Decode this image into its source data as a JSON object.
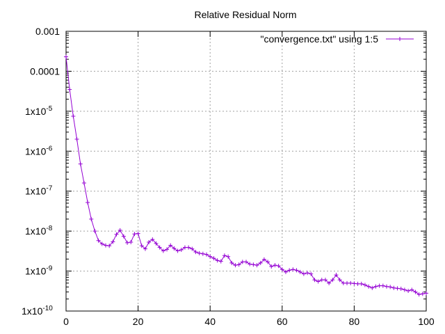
{
  "chart_data": {
    "type": "line",
    "title": "Relative Residual Norm",
    "xlabel": "",
    "ylabel": "",
    "xlim": [
      0,
      100
    ],
    "ylim": [
      1e-10,
      0.001
    ],
    "yscale": "log",
    "grid": true,
    "legend_position": "top-right",
    "x_ticks": [
      {
        "value": 0,
        "label": "0"
      },
      {
        "value": 20,
        "label": "20"
      },
      {
        "value": 40,
        "label": "40"
      },
      {
        "value": 60,
        "label": "60"
      },
      {
        "value": 80,
        "label": "80"
      },
      {
        "value": 100,
        "label": "100"
      }
    ],
    "y_ticks": [
      {
        "exp": -3,
        "mant": "0.001",
        "sup": ""
      },
      {
        "exp": -4,
        "mant": "0.0001",
        "sup": ""
      },
      {
        "exp": -5,
        "mant": "1x10",
        "sup": "-5"
      },
      {
        "exp": -6,
        "mant": "1x10",
        "sup": "-6"
      },
      {
        "exp": -7,
        "mant": "1x10",
        "sup": "-7"
      },
      {
        "exp": -8,
        "mant": "1x10",
        "sup": "-8"
      },
      {
        "exp": -9,
        "mant": "1x10",
        "sup": "-9"
      },
      {
        "exp": -10,
        "mant": "1x10",
        "sup": "-10"
      }
    ],
    "series": [
      {
        "name": "\"convergence.txt\" using 1:5",
        "color": "#9400d3",
        "marker": "plus",
        "x": [
          0,
          1,
          2,
          3,
          4,
          5,
          6,
          7,
          8,
          9,
          10,
          11,
          12,
          13,
          14,
          15,
          16,
          17,
          18,
          19,
          20,
          21,
          22,
          23,
          24,
          25,
          26,
          27,
          28,
          29,
          30,
          31,
          32,
          33,
          34,
          35,
          36,
          37,
          38,
          39,
          40,
          41,
          42,
          43,
          44,
          45,
          46,
          47,
          48,
          49,
          50,
          51,
          52,
          53,
          54,
          55,
          56,
          57,
          58,
          59,
          60,
          61,
          62,
          63,
          64,
          65,
          66,
          67,
          68,
          69,
          70,
          71,
          72,
          73,
          74,
          75,
          76,
          77,
          78,
          79,
          80,
          81,
          82,
          83,
          84,
          85,
          86,
          87,
          88,
          89,
          90,
          91,
          92,
          93,
          94,
          95,
          96,
          97,
          98,
          99,
          100
        ],
        "y": [
          0.00023,
          3.5e-05,
          7.5e-06,
          2e-06,
          4.8e-07,
          1.6e-07,
          5.2e-08,
          2e-08,
          1e-08,
          5.8e-09,
          4.8e-09,
          4.4e-09,
          4.3e-09,
          5.4e-09,
          8.3e-09,
          1.05e-08,
          7.4e-09,
          5.1e-09,
          5.3e-09,
          8.5e-09,
          8.7e-09,
          4.3e-09,
          3.6e-09,
          5.3e-09,
          6.2e-09,
          4.9e-09,
          3.9e-09,
          3.2e-09,
          3.5e-09,
          4.4e-09,
          3.7e-09,
          3.2e-09,
          3.4e-09,
          3.9e-09,
          3.9e-09,
          3.6e-09,
          3e-09,
          2.8e-09,
          2.7e-09,
          2.6e-09,
          2.3e-09,
          2.1e-09,
          1.85e-09,
          1.75e-09,
          2.45e-09,
          2.3e-09,
          1.6e-09,
          1.4e-09,
          1.45e-09,
          1.7e-09,
          1.7e-09,
          1.5e-09,
          1.45e-09,
          1.4e-09,
          1.6e-09,
          1.95e-09,
          1.7e-09,
          1.3e-09,
          1.4e-09,
          1.35e-09,
          1.1e-09,
          9.5e-10,
          1.05e-09,
          1.1e-09,
          1.05e-09,
          9.5e-10,
          8.5e-10,
          9e-10,
          8.5e-10,
          6e-10,
          5.5e-10,
          6e-10,
          6e-10,
          5e-10,
          6e-10,
          8e-10,
          6e-10,
          5e-10,
          5e-10,
          5e-10,
          4.9e-10,
          4.8e-10,
          4.8e-10,
          4.5e-10,
          4.1e-10,
          3.8e-10,
          4.1e-10,
          4.3e-10,
          4.3e-10,
          4.1e-10,
          4e-10,
          3.8e-10,
          3.7e-10,
          3.6e-10,
          3.4e-10,
          3.2e-10,
          3.4e-10,
          3e-10,
          2.6e-10,
          2.7e-10,
          2.8e-10
        ]
      }
    ]
  }
}
